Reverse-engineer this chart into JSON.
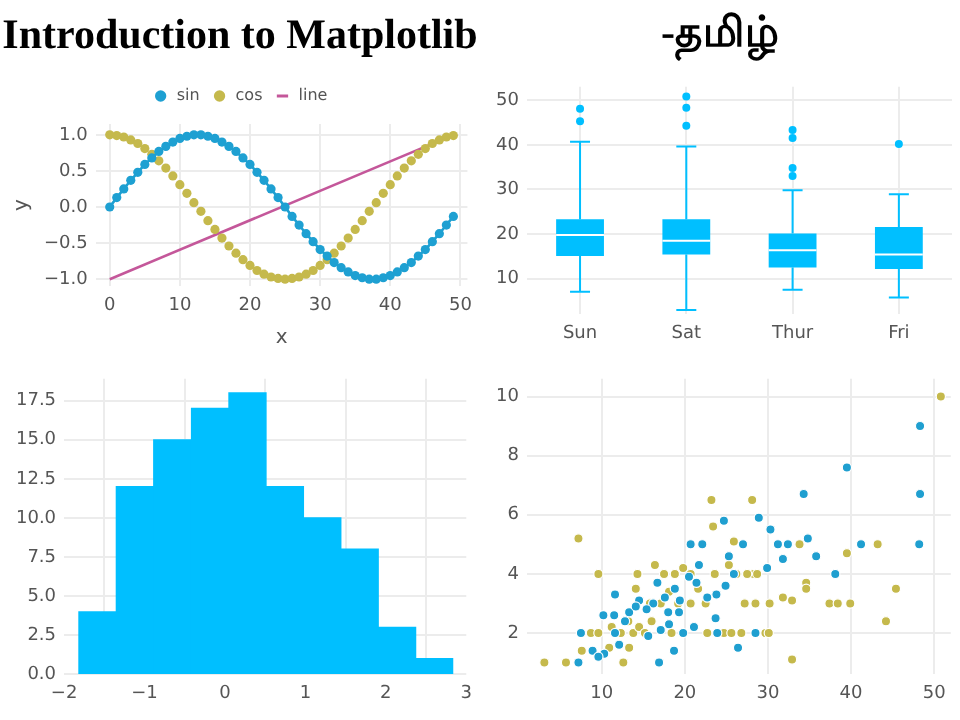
{
  "chart_data": [
    {
      "type": "line",
      "title": "Introduction to Matplotlib",
      "xlabel": "x",
      "ylabel": "y",
      "x": [
        0,
        1,
        2,
        3,
        4,
        5,
        6,
        7,
        8,
        9,
        10,
        11,
        12,
        13,
        14,
        15,
        16,
        17,
        18,
        19,
        20,
        21,
        22,
        23,
        24,
        25,
        26,
        27,
        28,
        29,
        30,
        31,
        32,
        33,
        34,
        35,
        36,
        37,
        38,
        39,
        40,
        41,
        42,
        43,
        44,
        45,
        46,
        47,
        48,
        49
      ],
      "xlim": [
        -2,
        51
      ],
      "xticks": [
        0,
        10,
        20,
        30,
        40,
        50
      ],
      "ylim": [
        -1.1,
        1.15
      ],
      "yticks": [
        {
          "value": -1,
          "label": "−1.0"
        },
        {
          "value": -0.5,
          "label": "−0.5"
        },
        {
          "value": 0,
          "label": "0.0"
        },
        {
          "value": 0.5,
          "label": "0.5"
        },
        {
          "value": 1,
          "label": "1.0"
        }
      ],
      "grid": true,
      "legend": "top",
      "series": [
        {
          "name": "sin",
          "type": "line",
          "marker": "circle",
          "color": "#1ea0d2",
          "values": [
            0,
            0.13,
            0.25,
            0.37,
            0.48,
            0.59,
            0.68,
            0.77,
            0.84,
            0.9,
            0.95,
            0.98,
            1,
            1,
            0.98,
            0.95,
            0.9,
            0.84,
            0.77,
            0.68,
            0.59,
            0.48,
            0.37,
            0.25,
            0.13,
            0,
            -0.13,
            -0.25,
            -0.37,
            -0.48,
            -0.59,
            -0.68,
            -0.77,
            -0.84,
            -0.9,
            -0.95,
            -0.98,
            -1,
            -1,
            -0.98,
            -0.95,
            -0.9,
            -0.84,
            -0.77,
            -0.68,
            -0.59,
            -0.48,
            -0.37,
            -0.25,
            -0.13
          ]
        },
        {
          "name": "cos",
          "type": "scatter",
          "marker": "circle",
          "color": "#c5b94c",
          "values": [
            1,
            0.99,
            0.97,
            0.93,
            0.88,
            0.81,
            0.73,
            0.64,
            0.54,
            0.43,
            0.31,
            0.19,
            0.06,
            -0.06,
            -0.19,
            -0.31,
            -0.43,
            -0.54,
            -0.64,
            -0.73,
            -0.81,
            -0.88,
            -0.93,
            -0.97,
            -0.99,
            -1,
            -0.99,
            -0.97,
            -0.93,
            -0.88,
            -0.81,
            -0.73,
            -0.64,
            -0.54,
            -0.43,
            -0.31,
            -0.19,
            -0.06,
            0.06,
            0.19,
            0.31,
            0.43,
            0.54,
            0.64,
            0.73,
            0.81,
            0.88,
            0.93,
            0.97,
            0.99
          ]
        },
        {
          "name": "line",
          "type": "line",
          "marker": "none",
          "color": "#c4579a",
          "x": [
            0,
            49
          ],
          "values": [
            -1,
            1
          ]
        }
      ]
    },
    {
      "type": "box",
      "title": "-தமிழ்",
      "categories": [
        "Sun",
        "Sat",
        "Thur",
        "Fri"
      ],
      "color": "#00bfff",
      "ylim": [
        2,
        53
      ],
      "yticks": [
        10,
        20,
        30,
        40,
        50
      ],
      "grid": true,
      "boxes": [
        {
          "low": 7.1,
          "q1": 15.1,
          "median": 19.8,
          "q3": 23.3,
          "high": 40.7,
          "outliers": [
            45.3,
            48.1
          ]
        },
        {
          "low": 3,
          "q1": 15.4,
          "median": 18.5,
          "q3": 23.3,
          "high": 39.6,
          "outliers": [
            44.3,
            48.3,
            50.8
          ]
        },
        {
          "low": 7.5,
          "q1": 12.5,
          "median": 16.4,
          "q3": 20.1,
          "high": 29.8,
          "outliers": [
            33,
            34.8,
            41.5,
            43.3
          ]
        },
        {
          "low": 5.8,
          "q1": 12.2,
          "median": 15.4,
          "q3": 21.6,
          "high": 28.9,
          "outliers": [
            40.2
          ]
        }
      ]
    },
    {
      "type": "histogram",
      "color": "#00bfff",
      "bins": [
        -1.82,
        -1.35,
        -0.89,
        -0.42,
        0.05,
        0.51,
        0.98,
        1.44,
        1.91,
        2.37,
        2.83
      ],
      "values": [
        4,
        12,
        15,
        17,
        18,
        12,
        10,
        8,
        3,
        1
      ],
      "xlim": [
        -2,
        3
      ],
      "xticks": [
        {
          "value": -2,
          "label": "−2"
        },
        {
          "value": -1,
          "label": "−1"
        },
        0,
        1,
        2,
        3
      ],
      "ylim": [
        0,
        18.9
      ],
      "yticks": [
        {
          "value": 0,
          "label": "0.0"
        },
        2.5,
        {
          "value": 5,
          "label": "5.0"
        },
        7.5,
        {
          "value": 10,
          "label": "10.0"
        },
        12.5,
        {
          "value": 15,
          "label": "15.0"
        },
        17.5
      ],
      "grid": true
    },
    {
      "type": "scatter",
      "xlim": [
        1,
        52
      ],
      "xticks": [
        10,
        20,
        30,
        40,
        50
      ],
      "ylim": [
        0.6,
        10.6
      ],
      "yticks": [
        2,
        4,
        6,
        8,
        10
      ],
      "grid": true,
      "marker": "circle",
      "series": [
        {
          "color": "#1f9fd0",
          "x": [
            48.3,
            39.5,
            48.3,
            34.3,
            48.2,
            41.2,
            34.8,
            35.8,
            38.1,
            30.3,
            28.9,
            31.2,
            32.4,
            31.8,
            29.9,
            24.7,
            27,
            20.7,
            22.1,
            21.7,
            25.3,
            25.9,
            24.9,
            23.8,
            22.7,
            21.4,
            20.5,
            18.8,
            17.6,
            16.7,
            16.2,
            15.4,
            14.5,
            13.3,
            12.8,
            11.5,
            10.2,
            11.6,
            10.3,
            8.9,
            7.5,
            7.2,
            16.9,
            18.7,
            19.8,
            21.1,
            18.1,
            17.1,
            19.3,
            23.7,
            23.9,
            26.4,
            28.5,
            11.6,
            14.1,
            18,
            19.4,
            15.6,
            9.6,
            12.1
          ],
          "values": [
            9,
            7.6,
            6.7,
            6.7,
            5,
            5,
            5.2,
            4.6,
            4,
            5.5,
            5.9,
            5,
            5,
            4.5,
            4.2,
            5.8,
            5,
            5,
            5,
            4.3,
            4.6,
            4,
            3.6,
            3.3,
            3.2,
            3.7,
            3.9,
            3.5,
            3.2,
            3.7,
            3,
            2.8,
            3.1,
            2.7,
            2.4,
            2.6,
            2.6,
            2,
            1.3,
            1.4,
            2,
            1,
            1,
            1.4,
            2,
            2.2,
            2.3,
            2.1,
            2.7,
            2.5,
            2,
            1.5,
            2,
            3.3,
            2.9,
            2.7,
            3.1,
            1.9,
            1.2,
            1.6
          ]
        },
        {
          "color": "#c5b94c",
          "x": [
            50.8,
            7.2,
            9.6,
            23.2,
            28.1,
            23.4,
            25.9,
            25.3,
            28.3,
            27.2,
            28.5,
            30.2,
            31.8,
            32.9,
            33.8,
            34.6,
            34.6,
            37.4,
            38.4,
            39.5,
            39.9,
            43.2,
            44.2,
            45.4,
            32.9,
            29.7,
            30.1,
            3.1,
            5.7,
            7.6,
            8.7,
            9.6,
            11.2,
            12.3,
            13.8,
            14.5,
            15.2,
            16,
            16.4,
            14.3,
            17.5,
            18.1,
            18.8,
            19.8,
            20.7,
            21.6,
            22.5,
            23.6,
            24.7,
            22.7,
            20.7,
            19.2,
            17.1,
            15.8,
            14.1,
            13.2,
            12.6,
            10.9,
            13.3,
            18.4,
            26.8,
            25.6,
            26.2,
            27.5,
            28.7
          ],
          "values": [
            10,
            5.2,
            4,
            6.5,
            6.5,
            5.6,
            5.1,
            4.3,
            4,
            3,
            3,
            3,
            3.2,
            3.1,
            5,
            3.7,
            3.5,
            3,
            3,
            4.7,
            3,
            5,
            2.4,
            3.5,
            1.1,
            2,
            2,
            1,
            1,
            1.4,
            2,
            2,
            2.2,
            2,
            2,
            2.2,
            2,
            2.4,
            4.3,
            4,
            4,
            3.4,
            4,
            4.2,
            4,
            3.5,
            3,
            4,
            2,
            2,
            3,
            3,
            3,
            3,
            3.5,
            2.4,
            1,
            1.5,
            1.5,
            2,
            2,
            2,
            4,
            4,
            4
          ]
        }
      ]
    }
  ]
}
